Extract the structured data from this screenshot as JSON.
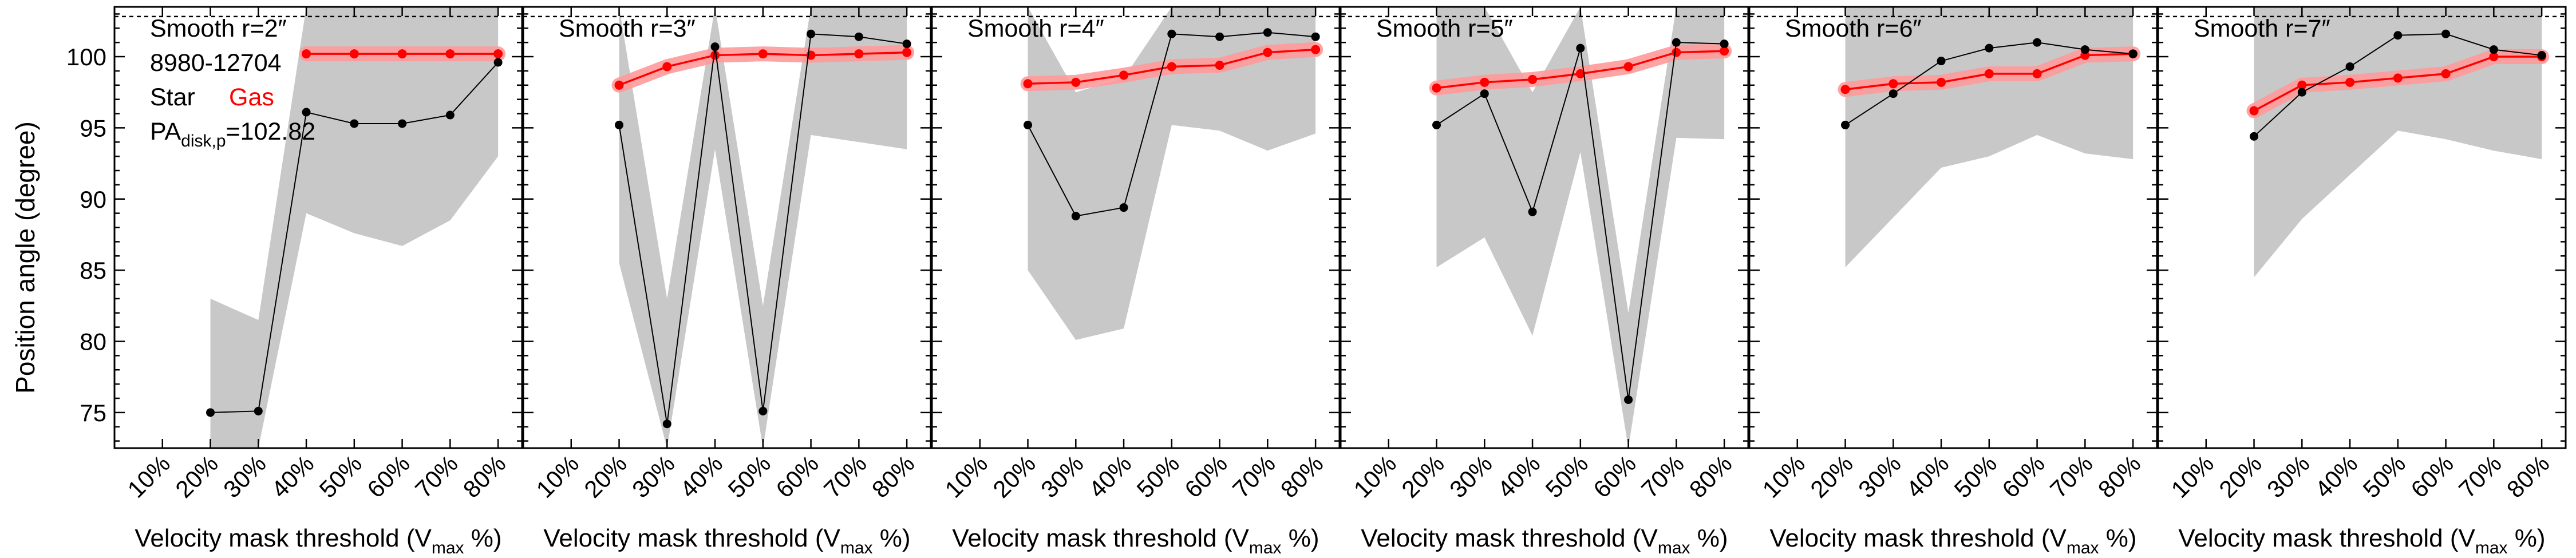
{
  "figure": {
    "ylabel": "Position angle (degree)",
    "xlabel_main": "Velocity mask threshold (V",
    "xlabel_sub": "max",
    "xlabel_tail": " %)"
  },
  "info": {
    "object_id": "8980-12704",
    "legend_star": "Star",
    "legend_gas": "Gas",
    "pa_main": "PA",
    "pa_sub": "disk,p",
    "pa_value": "=102.82"
  },
  "colors": {
    "star": "#000000",
    "gas": "#ff0000",
    "gas_band": "#ff9a9a",
    "uncertainty": "#c8c8c8",
    "reference_line": "#000000"
  },
  "chart_data": {
    "type": "line",
    "reference_pa": 102.82,
    "x_categories": [
      "10%",
      "20%",
      "30%",
      "40%",
      "50%",
      "60%",
      "70%",
      "80%"
    ],
    "ylim": [
      72.5,
      103.5
    ],
    "yticks": [
      75,
      80,
      85,
      90,
      95,
      100
    ],
    "grid": false,
    "panels": [
      {
        "title": "Smooth r=2″",
        "star": [
          {
            "x": 20,
            "y": 75.0
          },
          {
            "x": 30,
            "y": 75.1
          },
          {
            "x": 40,
            "y": 96.1
          },
          {
            "x": 50,
            "y": 95.3
          },
          {
            "x": 60,
            "y": 95.3
          },
          {
            "x": 70,
            "y": 95.9
          },
          {
            "x": 80,
            "y": 99.6
          }
        ],
        "star_band_low": [
          {
            "x": 20,
            "y": 72.5
          },
          {
            "x": 30,
            "y": 72.5
          },
          {
            "x": 40,
            "y": 89.0
          },
          {
            "x": 50,
            "y": 87.6
          },
          {
            "x": 60,
            "y": 86.7
          },
          {
            "x": 70,
            "y": 88.5
          },
          {
            "x": 80,
            "y": 93.0
          }
        ],
        "star_band_high": [
          {
            "x": 20,
            "y": 83.0
          },
          {
            "x": 30,
            "y": 81.5
          },
          {
            "x": 40,
            "y": 103.5
          },
          {
            "x": 50,
            "y": 103.5
          },
          {
            "x": 60,
            "y": 103.5
          },
          {
            "x": 70,
            "y": 103.5
          },
          {
            "x": 80,
            "y": 103.5
          }
        ],
        "gas": [
          {
            "x": 40,
            "y": 100.2
          },
          {
            "x": 50,
            "y": 100.2
          },
          {
            "x": 60,
            "y": 100.2
          },
          {
            "x": 70,
            "y": 100.2
          },
          {
            "x": 80,
            "y": 100.2
          }
        ]
      },
      {
        "title": "Smooth r=3″",
        "star": [
          {
            "x": 20,
            "y": 95.2
          },
          {
            "x": 30,
            "y": 74.2
          },
          {
            "x": 40,
            "y": 100.7
          },
          {
            "x": 50,
            "y": 75.1
          },
          {
            "x": 60,
            "y": 101.6
          },
          {
            "x": 70,
            "y": 101.4
          },
          {
            "x": 80,
            "y": 100.9
          }
        ],
        "star_band_low": [
          {
            "x": 20,
            "y": 85.5
          },
          {
            "x": 30,
            "y": 72.5
          },
          {
            "x": 40,
            "y": 93.5
          },
          {
            "x": 50,
            "y": 72.5
          },
          {
            "x": 60,
            "y": 94.5
          },
          {
            "x": 70,
            "y": 94.0
          },
          {
            "x": 80,
            "y": 93.5
          }
        ],
        "star_band_high": [
          {
            "x": 20,
            "y": 103.5
          },
          {
            "x": 30,
            "y": 83.0
          },
          {
            "x": 40,
            "y": 103.5
          },
          {
            "x": 50,
            "y": 82.5
          },
          {
            "x": 60,
            "y": 103.5
          },
          {
            "x": 70,
            "y": 103.5
          },
          {
            "x": 80,
            "y": 103.5
          }
        ],
        "gas": [
          {
            "x": 20,
            "y": 98.0
          },
          {
            "x": 30,
            "y": 99.3
          },
          {
            "x": 40,
            "y": 100.1
          },
          {
            "x": 50,
            "y": 100.2
          },
          {
            "x": 60,
            "y": 100.1
          },
          {
            "x": 70,
            "y": 100.2
          },
          {
            "x": 80,
            "y": 100.3
          }
        ]
      },
      {
        "title": "Smooth r=4″",
        "star": [
          {
            "x": 20,
            "y": 95.2
          },
          {
            "x": 30,
            "y": 88.8
          },
          {
            "x": 40,
            "y": 89.4
          },
          {
            "x": 50,
            "y": 101.6
          },
          {
            "x": 60,
            "y": 101.4
          },
          {
            "x": 70,
            "y": 101.7
          },
          {
            "x": 80,
            "y": 101.4
          }
        ],
        "star_band_low": [
          {
            "x": 20,
            "y": 85.0
          },
          {
            "x": 30,
            "y": 80.1
          },
          {
            "x": 40,
            "y": 80.9
          },
          {
            "x": 50,
            "y": 95.2
          },
          {
            "x": 60,
            "y": 94.8
          },
          {
            "x": 70,
            "y": 93.4
          },
          {
            "x": 80,
            "y": 94.6
          }
        ],
        "star_band_high": [
          {
            "x": 20,
            "y": 103.5
          },
          {
            "x": 30,
            "y": 97.5
          },
          {
            "x": 40,
            "y": 98.5
          },
          {
            "x": 50,
            "y": 103.5
          },
          {
            "x": 60,
            "y": 103.5
          },
          {
            "x": 70,
            "y": 103.5
          },
          {
            "x": 80,
            "y": 103.5
          }
        ],
        "gas": [
          {
            "x": 20,
            "y": 98.1
          },
          {
            "x": 30,
            "y": 98.2
          },
          {
            "x": 40,
            "y": 98.7
          },
          {
            "x": 50,
            "y": 99.3
          },
          {
            "x": 60,
            "y": 99.4
          },
          {
            "x": 70,
            "y": 100.3
          },
          {
            "x": 80,
            "y": 100.5
          }
        ]
      },
      {
        "title": "Smooth r=5″",
        "star": [
          {
            "x": 20,
            "y": 95.2
          },
          {
            "x": 30,
            "y": 97.4
          },
          {
            "x": 40,
            "y": 89.1
          },
          {
            "x": 50,
            "y": 100.6
          },
          {
            "x": 60,
            "y": 75.9
          },
          {
            "x": 70,
            "y": 101.0
          },
          {
            "x": 80,
            "y": 100.9
          }
        ],
        "star_band_low": [
          {
            "x": 20,
            "y": 85.2
          },
          {
            "x": 30,
            "y": 87.3
          },
          {
            "x": 40,
            "y": 80.4
          },
          {
            "x": 50,
            "y": 93.3
          },
          {
            "x": 60,
            "y": 72.5
          },
          {
            "x": 70,
            "y": 94.3
          },
          {
            "x": 80,
            "y": 94.2
          }
        ],
        "star_band_high": [
          {
            "x": 20,
            "y": 103.5
          },
          {
            "x": 30,
            "y": 103.5
          },
          {
            "x": 40,
            "y": 97.5
          },
          {
            "x": 50,
            "y": 103.5
          },
          {
            "x": 60,
            "y": 82.0
          },
          {
            "x": 70,
            "y": 103.5
          },
          {
            "x": 80,
            "y": 103.5
          }
        ],
        "gas": [
          {
            "x": 20,
            "y": 97.8
          },
          {
            "x": 30,
            "y": 98.2
          },
          {
            "x": 40,
            "y": 98.4
          },
          {
            "x": 50,
            "y": 98.8
          },
          {
            "x": 60,
            "y": 99.3
          },
          {
            "x": 70,
            "y": 100.3
          },
          {
            "x": 80,
            "y": 100.4
          }
        ]
      },
      {
        "title": "Smooth r=6″",
        "star": [
          {
            "x": 20,
            "y": 95.2
          },
          {
            "x": 30,
            "y": 97.4
          },
          {
            "x": 40,
            "y": 99.7
          },
          {
            "x": 50,
            "y": 100.6
          },
          {
            "x": 60,
            "y": 101.0
          },
          {
            "x": 70,
            "y": 100.5
          },
          {
            "x": 80,
            "y": 100.2
          }
        ],
        "star_band_low": [
          {
            "x": 20,
            "y": 85.2
          },
          {
            "x": 30,
            "y": 88.7
          },
          {
            "x": 40,
            "y": 92.2
          },
          {
            "x": 50,
            "y": 93.0
          },
          {
            "x": 60,
            "y": 94.5
          },
          {
            "x": 70,
            "y": 93.2
          },
          {
            "x": 80,
            "y": 92.8
          }
        ],
        "star_band_high": [
          {
            "x": 20,
            "y": 103.5
          },
          {
            "x": 30,
            "y": 103.5
          },
          {
            "x": 40,
            "y": 103.5
          },
          {
            "x": 50,
            "y": 103.5
          },
          {
            "x": 60,
            "y": 103.5
          },
          {
            "x": 70,
            "y": 103.5
          },
          {
            "x": 80,
            "y": 103.5
          }
        ],
        "gas": [
          {
            "x": 20,
            "y": 97.7
          },
          {
            "x": 30,
            "y": 98.1
          },
          {
            "x": 40,
            "y": 98.2
          },
          {
            "x": 50,
            "y": 98.8
          },
          {
            "x": 60,
            "y": 98.8
          },
          {
            "x": 70,
            "y": 100.1
          },
          {
            "x": 80,
            "y": 100.2
          }
        ]
      },
      {
        "title": "Smooth r=7″",
        "star": [
          {
            "x": 20,
            "y": 94.4
          },
          {
            "x": 30,
            "y": 97.5
          },
          {
            "x": 40,
            "y": 99.3
          },
          {
            "x": 50,
            "y": 101.5
          },
          {
            "x": 60,
            "y": 101.6
          },
          {
            "x": 70,
            "y": 100.5
          },
          {
            "x": 80,
            "y": 100.1
          }
        ],
        "star_band_low": [
          {
            "x": 20,
            "y": 84.5
          },
          {
            "x": 30,
            "y": 88.6
          },
          {
            "x": 40,
            "y": 91.7
          },
          {
            "x": 50,
            "y": 94.8
          },
          {
            "x": 60,
            "y": 94.2
          },
          {
            "x": 70,
            "y": 93.4
          },
          {
            "x": 80,
            "y": 92.8
          }
        ],
        "star_band_high": [
          {
            "x": 20,
            "y": 103.5
          },
          {
            "x": 30,
            "y": 103.5
          },
          {
            "x": 40,
            "y": 103.5
          },
          {
            "x": 50,
            "y": 103.5
          },
          {
            "x": 60,
            "y": 103.5
          },
          {
            "x": 70,
            "y": 103.5
          },
          {
            "x": 80,
            "y": 103.5
          }
        ],
        "gas": [
          {
            "x": 20,
            "y": 96.2
          },
          {
            "x": 30,
            "y": 98.0
          },
          {
            "x": 40,
            "y": 98.2
          },
          {
            "x": 50,
            "y": 98.5
          },
          {
            "x": 60,
            "y": 98.8
          },
          {
            "x": 70,
            "y": 100.0
          },
          {
            "x": 80,
            "y": 100.0
          }
        ]
      }
    ]
  }
}
